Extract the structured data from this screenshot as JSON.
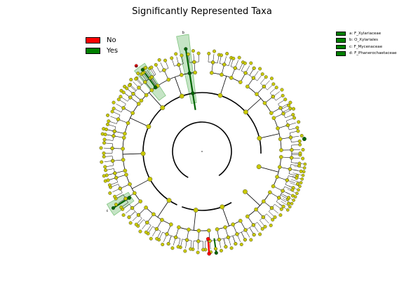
{
  "title": "Significantly Represented Taxa",
  "class_legend": [
    {
      "label": "No",
      "color": "#ff0000"
    },
    {
      "label": "Yes",
      "color": "#008000"
    }
  ],
  "clade_legend": [
    {
      "label": "a: F_Xylariaceae",
      "color": "#008000"
    },
    {
      "label": "b: O_Xylariales",
      "color": "#008000"
    },
    {
      "label": "c: F_Mycenaceae",
      "color": "#008000"
    },
    {
      "label": "d: F_Phanerochaetaceae",
      "color": "#008000"
    }
  ],
  "clade_markers": [
    "a",
    "b",
    "c",
    "d"
  ],
  "colors": {
    "node_default": "#c8c800",
    "node_yes": "#006400",
    "node_no": "#ff0000",
    "highlight": "#7fc47f",
    "edge": "#000000"
  }
}
